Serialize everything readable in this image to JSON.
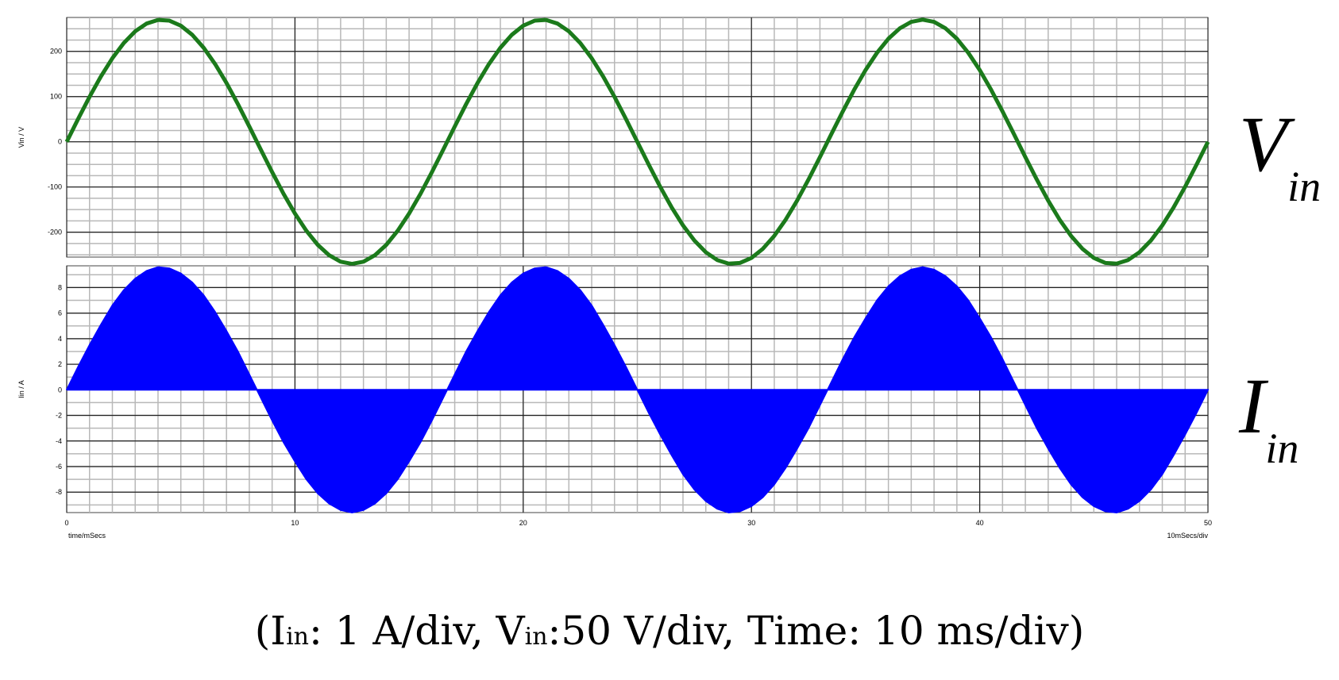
{
  "chart_data": [
    {
      "type": "line",
      "ylabel": "Vin / V",
      "label": {
        "main": "V",
        "sub": "in"
      },
      "x": [
        0,
        0.5,
        1,
        1.5,
        2,
        2.5,
        3,
        3.5,
        4,
        4.5,
        5,
        5.5,
        6,
        6.5,
        7,
        7.5,
        8,
        8.5,
        9,
        9.5,
        10,
        10.5,
        11,
        11.5,
        12,
        12.5,
        13,
        13.5,
        14,
        14.5,
        15,
        15.5,
        16,
        16.5,
        17,
        17.5,
        18,
        18.5,
        19,
        19.5,
        20,
        20.5,
        21,
        21.5,
        22,
        22.5,
        23,
        23.5,
        24,
        24.5,
        25,
        25.5,
        26,
        26.5,
        27,
        27.5,
        28,
        28.5,
        29,
        29.5,
        30,
        30.5,
        31,
        31.5,
        32,
        32.5,
        33,
        33.5,
        34,
        34.5,
        35,
        35.5,
        36,
        36.5,
        37,
        37.5,
        38,
        38.5,
        39,
        39.5,
        40,
        40.5,
        41,
        41.5,
        42,
        42.5,
        43,
        43.5,
        44,
        44.5,
        45,
        45.5,
        46,
        46.5,
        47,
        47.5,
        48,
        48.5,
        49,
        49.5,
        50
      ],
      "series": [
        {
          "color": "#1b7a1b",
          "values": [
            0,
            50.6,
            99.4,
            144.7,
            184.8,
            218.4,
            244.3,
            261.5,
            269.5,
            267.9,
            256.8,
            236.6,
            208,
            172.1,
            130.1,
            83.4,
            33.8,
            -17,
            -67.1,
            -115,
            -158.7,
            -196.8,
            -228,
            -251,
            -265.2,
            -270,
            -265.2,
            -251,
            -228,
            -196.8,
            -158.7,
            -115,
            -67.1,
            -17,
            33.8,
            83.4,
            130.1,
            172.1,
            208,
            236.6,
            256.8,
            267.9,
            269.5,
            261.5,
            244.3,
            218.4,
            184.8,
            144.7,
            99.4,
            50.6,
            0,
            -50.6,
            -99.4,
            -144.7,
            -184.8,
            -218.4,
            -244.3,
            -261.5,
            -269.5,
            -267.9,
            -256.8,
            -236.6,
            -208,
            -172.1,
            -130.1,
            -83.4,
            -33.8,
            17,
            67.1,
            115,
            158.7,
            196.8,
            228,
            251,
            265.2,
            270,
            265.2,
            251,
            228,
            196.8,
            158.7,
            115,
            67.1,
            17,
            -33.8,
            -83.4,
            -130.1,
            -172.1,
            -208,
            -236.6,
            -256.8,
            -267.9,
            -269.5,
            -261.5,
            -244.3,
            -218.4,
            -184.8,
            -144.7,
            -99.4,
            -50.6,
            0
          ]
        }
      ],
      "xlim": [
        0,
        50
      ],
      "xticks": [
        0,
        10,
        20,
        30,
        40,
        50
      ],
      "ylim": [
        -255,
        275
      ],
      "yticks": [
        -200,
        -100,
        0,
        100,
        200
      ],
      "grid": true
    },
    {
      "type": "area",
      "ylabel": "Iin / A",
      "label": {
        "main": "I",
        "sub": "in"
      },
      "xlabel": "time/mSecs",
      "xscale_note": "10mSecs/div",
      "x": [
        0,
        0.5,
        1,
        1.5,
        2,
        2.5,
        3,
        3.5,
        4,
        4.5,
        5,
        5.5,
        6,
        6.5,
        7,
        7.5,
        8,
        8.5,
        9,
        9.5,
        10,
        10.5,
        11,
        11.5,
        12,
        12.5,
        13,
        13.5,
        14,
        14.5,
        15,
        15.5,
        16,
        16.5,
        17,
        17.5,
        18,
        18.5,
        19,
        19.5,
        20,
        20.5,
        21,
        21.5,
        22,
        22.5,
        23,
        23.5,
        24,
        24.5,
        25,
        25.5,
        26,
        26.5,
        27,
        27.5,
        28,
        28.5,
        29,
        29.5,
        30,
        30.5,
        31,
        31.5,
        32,
        32.5,
        33,
        33.5,
        34,
        34.5,
        35,
        35.5,
        36,
        36.5,
        37,
        37.5,
        38,
        38.5,
        39,
        39.5,
        40,
        40.5,
        41,
        41.5,
        42,
        42.5,
        43,
        43.5,
        44,
        44.5,
        45,
        45.5,
        46,
        46.5,
        47,
        47.5,
        48,
        48.5,
        49,
        49.5,
        50
      ],
      "series": [
        {
          "color": "#0000ff",
          "values": [
            0,
            1.8,
            3.5,
            5.1,
            6.6,
            7.8,
            8.7,
            9.3,
            9.6,
            9.5,
            9.1,
            8.4,
            7.4,
            6.1,
            4.6,
            3,
            1.2,
            -0.6,
            -2.4,
            -4.1,
            -5.6,
            -7,
            -8.1,
            -8.9,
            -9.4,
            -9.6,
            -9.4,
            -8.9,
            -8.1,
            -7,
            -5.6,
            -4.1,
            -2.4,
            -0.6,
            1.2,
            3,
            4.6,
            6.1,
            7.4,
            8.4,
            9.1,
            9.5,
            9.6,
            9.3,
            8.7,
            7.8,
            6.6,
            5.1,
            3.5,
            1.8,
            0,
            -1.8,
            -3.5,
            -5.1,
            -6.6,
            -7.8,
            -8.7,
            -9.3,
            -9.6,
            -9.5,
            -9.1,
            -8.4,
            -7.4,
            -6.1,
            -4.6,
            -3,
            -1.2,
            0.6,
            2.4,
            4.1,
            5.6,
            7,
            8.1,
            8.9,
            9.4,
            9.6,
            9.4,
            8.9,
            8.1,
            7,
            5.6,
            4.1,
            2.4,
            0.6,
            -1.2,
            -3,
            -4.6,
            -6.1,
            -7.4,
            -8.4,
            -9.1,
            -9.5,
            -9.6,
            -9.3,
            -8.7,
            -7.8,
            -6.6,
            -5.1,
            -3.5,
            -1.8,
            0
          ]
        }
      ],
      "xlim": [
        0,
        50
      ],
      "xticks": [
        0,
        10,
        20,
        30,
        40,
        50
      ],
      "ylim": [
        -9.6,
        9.7
      ],
      "yticks": [
        -8,
        -6,
        -4,
        -2,
        0,
        2,
        4,
        6,
        8
      ],
      "grid": true
    }
  ],
  "caption": [
    "(I",
    "in",
    ": 1 A/div, V",
    "in",
    ":50 V/div, Time: 10 ms/div)"
  ]
}
